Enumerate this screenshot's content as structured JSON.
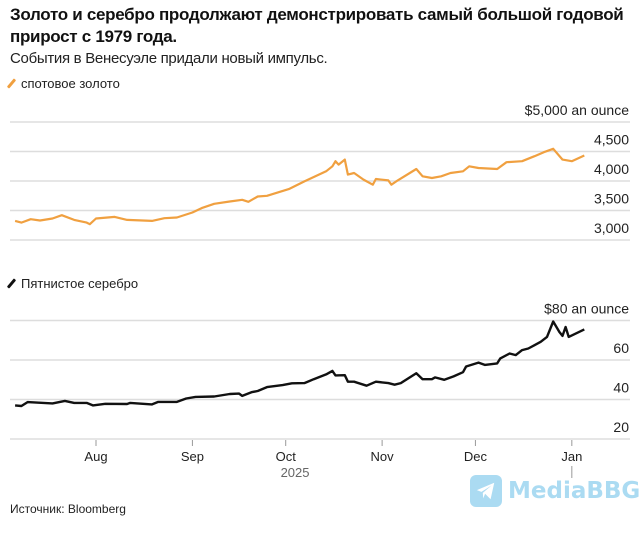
{
  "header": {
    "title": "Золото и серебро продолжают демонстрировать самый большой годовой прирост с 1979 года.",
    "subtitle": "События в Венесуэле придали новый импульс."
  },
  "source": "Источник: Bloomberg",
  "watermark": "MediaBBG",
  "colors": {
    "gold": "#f0a040",
    "silver": "#111111",
    "grid": "#dddddd",
    "watermark": "#8fcfee"
  },
  "chart_data": [
    {
      "type": "line",
      "series": [
        {
          "name": "спотовое золото",
          "color": "#f0a040"
        }
      ],
      "legend": "спотовое золото",
      "legend_placement": "top-left",
      "unit_label": "$5,000 an ounce",
      "y_ticks": [
        {
          "v": 3000,
          "label": "3,000"
        },
        {
          "v": 3500,
          "label": "3,500"
        },
        {
          "v": 4000,
          "label": "4,000"
        },
        {
          "v": 4500,
          "label": "4,500"
        },
        {
          "v": 5000,
          "label": "$5,000 an ounce"
        }
      ],
      "ylim": [
        3000,
        5000
      ],
      "grid": true,
      "points": [
        [
          "2025-07-06",
          3324
        ],
        [
          "2025-07-08",
          3295
        ],
        [
          "2025-07-11",
          3352
        ],
        [
          "2025-07-14",
          3330
        ],
        [
          "2025-07-18",
          3364
        ],
        [
          "2025-07-21",
          3420
        ],
        [
          "2025-07-25",
          3341
        ],
        [
          "2025-07-29",
          3295
        ],
        [
          "2025-07-30",
          3267
        ],
        [
          "2025-08-01",
          3364
        ],
        [
          "2025-08-07",
          3392
        ],
        [
          "2025-08-11",
          3341
        ],
        [
          "2025-08-19",
          3324
        ],
        [
          "2025-08-23",
          3369
        ],
        [
          "2025-08-27",
          3381
        ],
        [
          "2025-09-01",
          3466
        ],
        [
          "2025-09-04",
          3540
        ],
        [
          "2025-09-08",
          3614
        ],
        [
          "2025-09-13",
          3653
        ],
        [
          "2025-09-17",
          3682
        ],
        [
          "2025-09-19",
          3648
        ],
        [
          "2025-09-22",
          3738
        ],
        [
          "2025-09-25",
          3750
        ],
        [
          "2025-10-02",
          3863
        ],
        [
          "2025-10-07",
          3994
        ],
        [
          "2025-10-14",
          4164
        ],
        [
          "2025-10-16",
          4250
        ],
        [
          "2025-10-17",
          4335
        ],
        [
          "2025-10-18",
          4278
        ],
        [
          "2025-10-20",
          4363
        ],
        [
          "2025-10-21",
          4108
        ],
        [
          "2025-10-23",
          4136
        ],
        [
          "2025-10-26",
          4023
        ],
        [
          "2025-10-29",
          3937
        ],
        [
          "2025-10-30",
          4034
        ],
        [
          "2025-11-03",
          4011
        ],
        [
          "2025-11-04",
          3937
        ],
        [
          "2025-11-06",
          4011
        ],
        [
          "2025-11-12",
          4204
        ],
        [
          "2025-11-14",
          4079
        ],
        [
          "2025-11-17",
          4051
        ],
        [
          "2025-11-20",
          4079
        ],
        [
          "2025-11-23",
          4136
        ],
        [
          "2025-11-27",
          4164
        ],
        [
          "2025-11-29",
          4250
        ],
        [
          "2025-12-02",
          4221
        ],
        [
          "2025-12-08",
          4204
        ],
        [
          "2025-12-11",
          4318
        ],
        [
          "2025-12-16",
          4335
        ],
        [
          "2025-12-20",
          4420
        ],
        [
          "2025-12-23",
          4488
        ],
        [
          "2025-12-26",
          4545
        ],
        [
          "2025-12-29",
          4363
        ],
        [
          "2026-01-01",
          4335
        ],
        [
          "2026-01-05",
          4432
        ]
      ]
    },
    {
      "type": "line",
      "series": [
        {
          "name": "Пятнистое серебро",
          "color": "#111111"
        }
      ],
      "legend": "Пятнистое серебро",
      "legend_placement": "top-left",
      "unit_label": "$80 an ounce",
      "y_ticks": [
        {
          "v": 20,
          "label": "20"
        },
        {
          "v": 40,
          "label": "40"
        },
        {
          "v": 60,
          "label": "60"
        },
        {
          "v": 80,
          "label": "$80 an ounce"
        }
      ],
      "ylim": [
        20,
        80
      ],
      "grid": true,
      "x_ticks": [
        {
          "date": "2025-08-01",
          "label": "Aug"
        },
        {
          "date": "2025-09-01",
          "label": "Sep"
        },
        {
          "date": "2025-10-01",
          "label": "Oct"
        },
        {
          "date": "2025-11-01",
          "label": "Nov"
        },
        {
          "date": "2025-12-01",
          "label": "Dec"
        },
        {
          "date": "2026-01-01",
          "label": "Jan"
        }
      ],
      "x_year_label": "2025",
      "points": [
        [
          "2025-07-06",
          37
        ],
        [
          "2025-07-08",
          36.7
        ],
        [
          "2025-07-10",
          38.7
        ],
        [
          "2025-07-18",
          38
        ],
        [
          "2025-07-22",
          39.3
        ],
        [
          "2025-07-25",
          38.3
        ],
        [
          "2025-07-29",
          38.3
        ],
        [
          "2025-07-31",
          37
        ],
        [
          "2025-08-04",
          37.8
        ],
        [
          "2025-08-11",
          37.7
        ],
        [
          "2025-08-12",
          38.3
        ],
        [
          "2025-08-19",
          37.5
        ],
        [
          "2025-08-21",
          38.8
        ],
        [
          "2025-08-27",
          38.8
        ],
        [
          "2025-08-30",
          40.5
        ],
        [
          "2025-09-02",
          41.3
        ],
        [
          "2025-09-08",
          41.5
        ],
        [
          "2025-09-13",
          42.8
        ],
        [
          "2025-09-16",
          43
        ],
        [
          "2025-09-17",
          41.8
        ],
        [
          "2025-09-20",
          43.7
        ],
        [
          "2025-09-22",
          44.3
        ],
        [
          "2025-09-25",
          46.3
        ],
        [
          "2025-09-30",
          47.3
        ],
        [
          "2025-10-03",
          48.2
        ],
        [
          "2025-10-07",
          48.3
        ],
        [
          "2025-10-10",
          50.3
        ],
        [
          "2025-10-14",
          52.7
        ],
        [
          "2025-10-16",
          54.5
        ],
        [
          "2025-10-17",
          52.2
        ],
        [
          "2025-10-20",
          52.3
        ],
        [
          "2025-10-21",
          49
        ],
        [
          "2025-10-23",
          49
        ],
        [
          "2025-10-27",
          47
        ],
        [
          "2025-10-30",
          49
        ],
        [
          "2025-11-03",
          48.3
        ],
        [
          "2025-11-05",
          47.5
        ],
        [
          "2025-11-07",
          48.3
        ],
        [
          "2025-11-12",
          53.3
        ],
        [
          "2025-11-14",
          50.3
        ],
        [
          "2025-11-17",
          50.3
        ],
        [
          "2025-11-18",
          51.2
        ],
        [
          "2025-11-21",
          50
        ],
        [
          "2025-11-24",
          51.7
        ],
        [
          "2025-11-27",
          53.8
        ],
        [
          "2025-11-28",
          56.7
        ],
        [
          "2025-12-02",
          58.7
        ],
        [
          "2025-12-04",
          57.5
        ],
        [
          "2025-12-08",
          58.3
        ],
        [
          "2025-12-09",
          60.8
        ],
        [
          "2025-12-12",
          63.3
        ],
        [
          "2025-12-14",
          62.5
        ],
        [
          "2025-12-16",
          65
        ],
        [
          "2025-12-18",
          65.8
        ],
        [
          "2025-12-20",
          67.5
        ],
        [
          "2025-12-22",
          69.2
        ],
        [
          "2025-12-24",
          71.7
        ],
        [
          "2025-12-26",
          79.5
        ],
        [
          "2025-12-28",
          74.2
        ],
        [
          "2025-12-29",
          72.2
        ],
        [
          "2025-12-30",
          76.7
        ],
        [
          "2025-12-31",
          71.7
        ],
        [
          "2026-01-05",
          75.5
        ]
      ]
    }
  ]
}
